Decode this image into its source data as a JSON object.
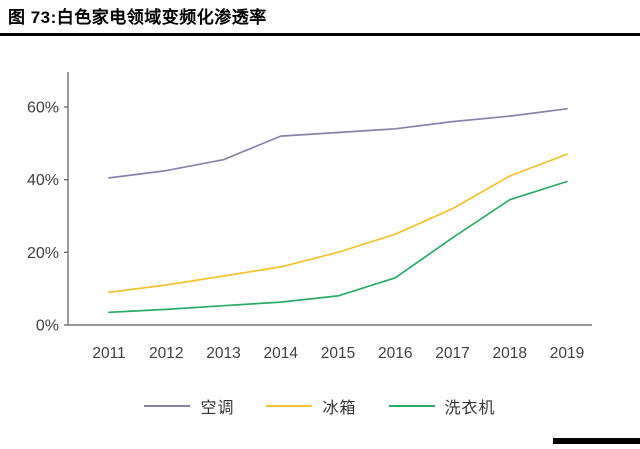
{
  "header": {
    "title": "图 73:白色家电领域变频化渗透率"
  },
  "chart_data": {
    "type": "line",
    "title": "白色家电领域变频化渗透率",
    "categories": [
      "2011",
      "2012",
      "2013",
      "2014",
      "2015",
      "2016",
      "2017",
      "2018",
      "2019"
    ],
    "series": [
      {
        "id": "air-conditioner",
        "name": "空调",
        "color": "#8883A9",
        "values": [
          40.5,
          42.5,
          45.5,
          52,
          53,
          54,
          56,
          57.5,
          59.5
        ]
      },
      {
        "id": "refrigerator",
        "name": "冰箱",
        "color": "#F2C32E",
        "values": [
          9,
          11,
          13.5,
          16,
          20,
          25,
          32,
          41,
          47
        ]
      },
      {
        "id": "washing-machine",
        "name": "洗衣机",
        "color": "#2BAB67",
        "values": [
          3.5,
          4.3,
          5.3,
          6.3,
          8,
          13,
          24,
          34.5,
          39.5
        ]
      }
    ],
    "yticks": [
      0,
      20,
      40,
      60
    ],
    "ytick_suffix": "%",
    "ylim": [
      0,
      69.6
    ],
    "xlabel": "",
    "ylabel": "",
    "grid": false,
    "legend_position": "bottom",
    "axis_color": "#595959",
    "tick_label_color": "#404040"
  }
}
